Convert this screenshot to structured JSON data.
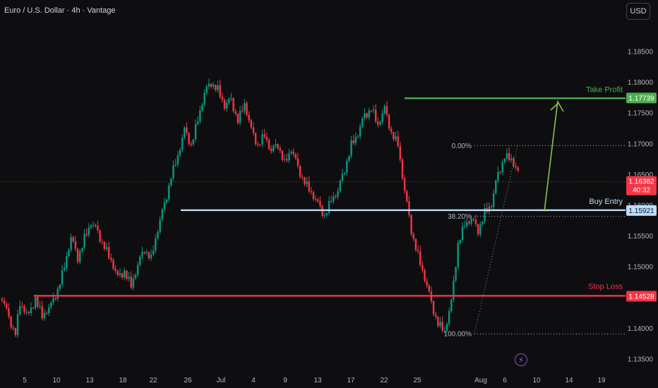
{
  "header": {
    "symbol_title": "Euro / U.S. Dollar · 4h · Vantage",
    "currency_button": "USD"
  },
  "chart_data": {
    "type": "candlestick",
    "title": "Euro / U.S. Dollar · 4h · Vantage",
    "ylim": [
      1.134,
      1.1875
    ],
    "y_ticks": [
      "1.13500",
      "1.14000",
      "1.14500",
      "1.15000",
      "1.15500",
      "1.16000",
      "1.16500",
      "1.17000",
      "1.17500",
      "1.18000",
      "1.18500"
    ],
    "x_ticks": [
      "5",
      "10",
      "13",
      "18",
      "22",
      "26",
      "Jul",
      "4",
      "9",
      "13",
      "17",
      "22",
      "25",
      "Aug",
      "6",
      "10",
      "14",
      "19"
    ],
    "current_price": "1.16382",
    "countdown": "40:32",
    "levels": [
      {
        "name": "Take Profit",
        "value": "1.17739",
        "color": "#4caf50"
      },
      {
        "name": "Buy Entry",
        "value": "1.15921",
        "color": "#bbdefb"
      },
      {
        "name": "Stop Loss",
        "value": "1.14528",
        "color": "#f23645"
      }
    ],
    "fibonacci": [
      {
        "label": "0.00%",
        "value": 1.1697
      },
      {
        "label": "38.20%",
        "value": 1.1582
      },
      {
        "label": "100.00%",
        "value": 1.1391
      }
    ],
    "price_path": [
      [
        0,
        1.1448
      ],
      [
        3,
        1.1415
      ],
      [
        6,
        1.1395
      ],
      [
        8,
        1.144
      ],
      [
        12,
        1.1418
      ],
      [
        15,
        1.1452
      ],
      [
        18,
        1.142
      ],
      [
        22,
        1.1435
      ],
      [
        25,
        1.1465
      ],
      [
        28,
        1.1502
      ],
      [
        31,
        1.1545
      ],
      [
        34,
        1.1515
      ],
      [
        37,
        1.1548
      ],
      [
        40,
        1.157
      ],
      [
        43,
        1.1555
      ],
      [
        46,
        1.1535
      ],
      [
        49,
        1.151
      ],
      [
        52,
        1.148
      ],
      [
        55,
        1.1495
      ],
      [
        58,
        1.147
      ],
      [
        61,
        1.15
      ],
      [
        64,
        1.153
      ],
      [
        67,
        1.1515
      ],
      [
        70,
        1.156
      ],
      [
        73,
        1.16
      ],
      [
        76,
        1.165
      ],
      [
        79,
        1.168
      ],
      [
        82,
        1.172
      ],
      [
        85,
        1.17
      ],
      [
        88,
        1.174
      ],
      [
        91,
        1.178
      ],
      [
        94,
        1.18
      ],
      [
        97,
        1.179
      ],
      [
        100,
        1.176
      ],
      [
        103,
        1.177
      ],
      [
        106,
        1.174
      ],
      [
        109,
        1.1765
      ],
      [
        112,
        1.172
      ],
      [
        115,
        1.17
      ],
      [
        118,
        1.1715
      ],
      [
        121,
        1.1685
      ],
      [
        124,
        1.17
      ],
      [
        127,
        1.167
      ],
      [
        130,
        1.169
      ],
      [
        133,
        1.166
      ],
      [
        136,
        1.164
      ],
      [
        139,
        1.162
      ],
      [
        142,
        1.16
      ],
      [
        145,
        1.1585
      ],
      [
        148,
        1.161
      ],
      [
        151,
        1.162
      ],
      [
        154,
        1.166
      ],
      [
        157,
        1.17
      ],
      [
        160,
        1.1715
      ],
      [
        163,
        1.1745
      ],
      [
        166,
        1.176
      ],
      [
        169,
        1.173
      ],
      [
        172,
        1.1755
      ],
      [
        175,
        1.172
      ],
      [
        178,
        1.17
      ],
      [
        181,
        1.162
      ],
      [
        184,
        1.156
      ],
      [
        187,
        1.152
      ],
      [
        190,
        1.148
      ],
      [
        193,
        1.144
      ],
      [
        196,
        1.141
      ],
      [
        199,
        1.1395
      ],
      [
        202,
        1.144
      ],
      [
        205,
        1.154
      ],
      [
        208,
        1.157
      ],
      [
        211,
        1.1575
      ],
      [
        214,
        1.156
      ],
      [
        217,
        1.159
      ],
      [
        220,
        1.16
      ],
      [
        223,
        1.165
      ],
      [
        226,
        1.1682
      ],
      [
        229,
        1.1675
      ],
      [
        232,
        1.165
      ],
      [
        233,
        1.1638
      ]
    ]
  }
}
